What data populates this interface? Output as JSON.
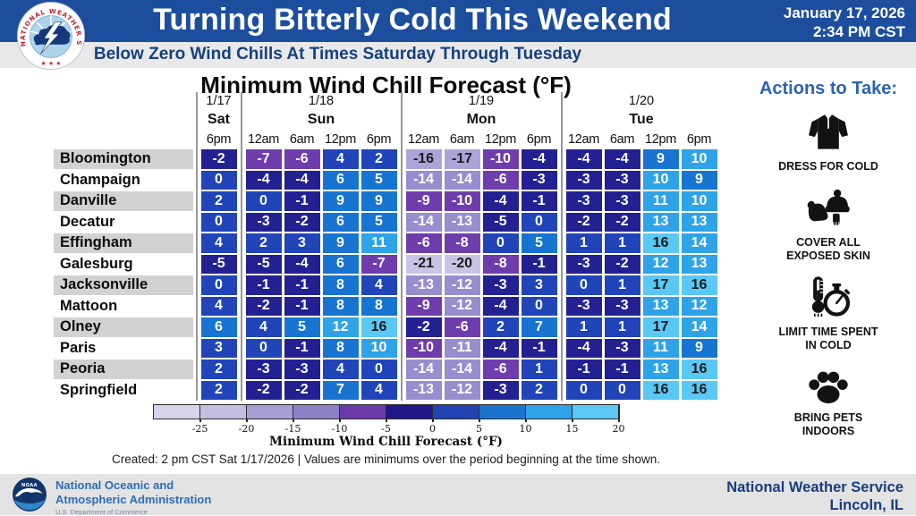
{
  "header": {
    "title": "Turning Bitterly Cold This Weekend",
    "date_line1": "January 17, 2026",
    "date_line2": "2:34 PM CST",
    "subtitle": "Below Zero Wind Chills At Times Saturday Through Tuesday",
    "logo": "nws-logo"
  },
  "chart_data": {
    "type": "heatmap",
    "title": "Minimum Wind Chill Forecast (°F)",
    "columns": [
      {
        "date": "1/17",
        "day": "Sat",
        "times": [
          "6pm"
        ]
      },
      {
        "date": "1/18",
        "day": "Sun",
        "times": [
          "12am",
          "6am",
          "12pm",
          "6pm"
        ]
      },
      {
        "date": "1/19",
        "day": "Mon",
        "times": [
          "12am",
          "6am",
          "12pm",
          "6pm"
        ]
      },
      {
        "date": "1/20",
        "day": "Tue",
        "times": [
          "12am",
          "6am",
          "12pm",
          "6pm"
        ]
      }
    ],
    "rows": [
      {
        "city": "Bloomington",
        "values": [
          -2,
          -7,
          -6,
          4,
          2,
          -16,
          -17,
          -10,
          -4,
          -4,
          -4,
          9,
          10
        ]
      },
      {
        "city": "Champaign",
        "values": [
          0,
          -4,
          -4,
          6,
          5,
          -14,
          -14,
          -6,
          -3,
          -3,
          -3,
          10,
          9
        ]
      },
      {
        "city": "Danville",
        "values": [
          2,
          0,
          -1,
          9,
          9,
          -9,
          -10,
          -4,
          -1,
          -3,
          -3,
          11,
          10
        ]
      },
      {
        "city": "Decatur",
        "values": [
          0,
          -3,
          -2,
          6,
          5,
          -14,
          -13,
          -5,
          0,
          -2,
          -2,
          13,
          13
        ]
      },
      {
        "city": "Effingham",
        "values": [
          4,
          2,
          3,
          9,
          11,
          -6,
          -8,
          0,
          5,
          1,
          1,
          16,
          14
        ]
      },
      {
        "city": "Galesburg",
        "values": [
          -5,
          -5,
          -4,
          6,
          -7,
          -21,
          -20,
          -8,
          -1,
          -3,
          -2,
          12,
          13
        ]
      },
      {
        "city": "Jacksonville",
        "values": [
          0,
          -1,
          -1,
          8,
          4,
          -13,
          -12,
          -3,
          3,
          0,
          1,
          17,
          16
        ]
      },
      {
        "city": "Mattoon",
        "values": [
          4,
          -2,
          -1,
          8,
          8,
          -9,
          -12,
          -4,
          0,
          -3,
          -3,
          13,
          12
        ]
      },
      {
        "city": "Olney",
        "values": [
          6,
          4,
          5,
          12,
          16,
          -2,
          -6,
          2,
          7,
          1,
          1,
          17,
          14
        ]
      },
      {
        "city": "Paris",
        "values": [
          3,
          0,
          -1,
          8,
          10,
          -10,
          -11,
          -4,
          -1,
          -4,
          -3,
          11,
          9
        ]
      },
      {
        "city": "Peoria",
        "values": [
          2,
          -3,
          -3,
          4,
          0,
          -14,
          -14,
          -6,
          1,
          -1,
          -1,
          13,
          16
        ]
      },
      {
        "city": "Springfield",
        "values": [
          2,
          -2,
          -2,
          7,
          4,
          -13,
          -12,
          -3,
          2,
          0,
          0,
          16,
          16
        ]
      }
    ],
    "color_scale": {
      "bins": [
        {
          "max": -20,
          "bg": "#c9c4e6",
          "fg": "#1a1a1a"
        },
        {
          "max": -15,
          "bg": "#aea3d8",
          "fg": "#1a1a1a"
        },
        {
          "max": -11,
          "bg": "#988dce",
          "fg": "#ffffff"
        },
        {
          "max": -6,
          "bg": "#6f3cac",
          "fg": "#ffffff"
        },
        {
          "max": -1,
          "bg": "#232192",
          "fg": "#ffffff"
        },
        {
          "max": 4,
          "bg": "#2144b8",
          "fg": "#ffffff"
        },
        {
          "max": 9,
          "bg": "#1774d0",
          "fg": "#ffffff"
        },
        {
          "max": 14,
          "bg": "#2fa3e8",
          "fg": "#ffffff"
        },
        {
          "max": 999,
          "bg": "#5ac8f5",
          "fg": "#1a1a1a"
        }
      ],
      "bar_colors": [
        "#d6d3ec",
        "#c4bee1",
        "#a89dd4",
        "#8d80c4",
        "#6a3aa8",
        "#1f1787",
        "#2143b4",
        "#1a74ce",
        "#2fa3e8",
        "#5ac8f5"
      ],
      "ticks": [
        "-25",
        "-20",
        "-15",
        "-10",
        "-5",
        "0",
        "5",
        "10",
        "15",
        "20"
      ],
      "range": [
        -30,
        20
      ],
      "label": "Minimum Wind Chill Forecast (°F)"
    },
    "footnote": "Created: 2 pm CST Sat 1/17/2026  |  Values are minimums over the period beginning at the time shown."
  },
  "actions": {
    "heading": "Actions to Take:",
    "items": [
      {
        "icon": "jacket-icon",
        "label": "DRESS FOR COLD"
      },
      {
        "icon": "winter-gear-icon",
        "label": "COVER ALL EXPOSED SKIN"
      },
      {
        "icon": "thermometer-stopwatch-icon",
        "label": "LIMIT TIME SPENT IN COLD"
      },
      {
        "icon": "paw-icon",
        "label": "BRING PETS INDOORS"
      }
    ]
  },
  "footer": {
    "noaa_line1": "National Oceanic and",
    "noaa_line2": "Atmospheric Administration",
    "noaa_line3": "U.S. Department of Commerce",
    "office_line1": "National Weather Service",
    "office_line2": "Lincoln, IL"
  },
  "colors": {
    "header_bg": "#1d4e9e",
    "subtitle_bg": "#e9e9e9",
    "subtitle_text": "#16407f",
    "actions_heading": "#2b62b5",
    "footer_bg": "#e3e3e3",
    "footer_text": "#173d7d",
    "noaa_text": "#2e6db6",
    "nws_red": "#c8202f",
    "nws_blue": "#16387c"
  }
}
